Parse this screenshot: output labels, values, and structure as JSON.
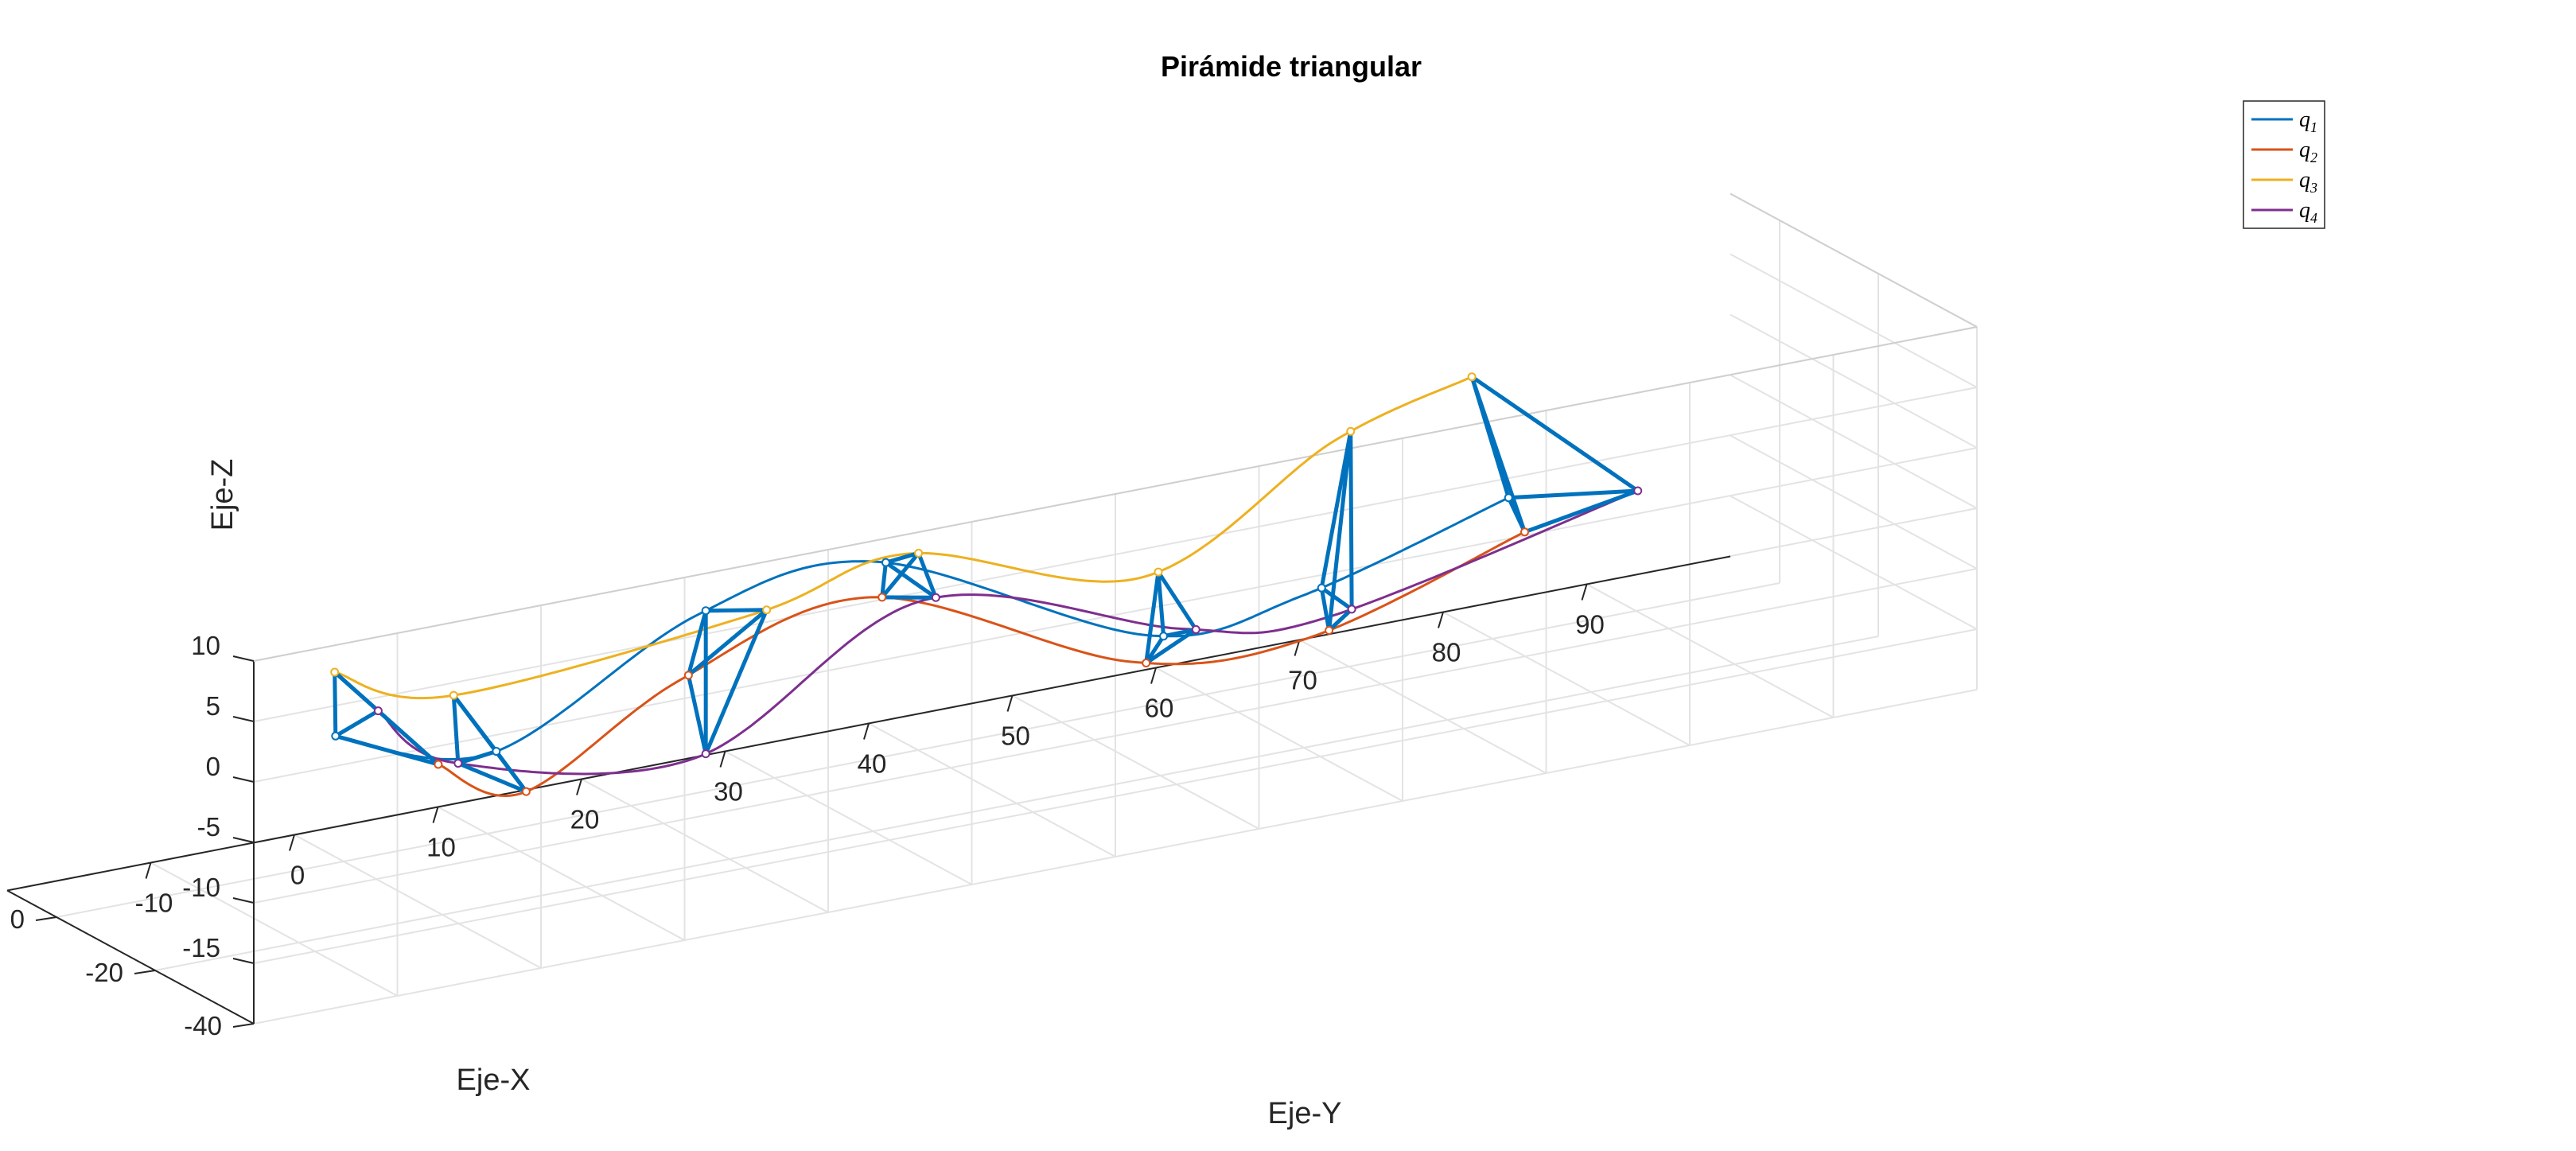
{
  "chart_data": {
    "type": "line",
    "subtype": "3d-line",
    "title": "Pirámide triangular",
    "xlabel": "Eje-X",
    "ylabel": "Eje-Y",
    "zlabel": "Eje-Z",
    "xticks": [
      -40,
      -20,
      0
    ],
    "yticks": [
      -10,
      0,
      10,
      20,
      30,
      40,
      50,
      60,
      70,
      80,
      90
    ],
    "zticks": [
      -15,
      -10,
      -5,
      0,
      5,
      10
    ],
    "xlim": [
      -40,
      10
    ],
    "ylim": [
      -20,
      100
    ],
    "zlim": [
      -20,
      10
    ],
    "grid": true,
    "legend_position": "top-right",
    "legend": [
      {
        "symbol": "q",
        "sub": "1",
        "color": "#0072BD"
      },
      {
        "symbol": "q",
        "sub": "2",
        "color": "#D95319"
      },
      {
        "symbol": "q",
        "sub": "3",
        "color": "#EDB120"
      },
      {
        "symbol": "q",
        "sub": "4",
        "color": "#7E2F8E"
      }
    ],
    "pyramid_color": "#0072BD",
    "series": [
      {
        "name": "q1",
        "color": "#0072BD",
        "points": [
          [
            -10,
            -4.0,
            -6.5
          ],
          [
            2,
            11.0,
            -14.0
          ],
          [
            10,
            28.0,
            -8.3
          ],
          [
            6,
            39.0,
            -5.5
          ],
          [
            -3,
            55.0,
            -13.3
          ],
          [
            -8,
            64.0,
            -11.0
          ],
          [
            -12,
            77.0,
            -5.0
          ]
        ]
      },
      {
        "name": "q2",
        "color": "#D95319",
        "points": [
          [
            -25,
            -2.0,
            -6.0
          ],
          [
            -16,
            7.0,
            -12.4
          ],
          [
            -7,
            21.0,
            -8.3
          ],
          [
            -2,
            36.0,
            -6.0
          ],
          [
            -11,
            51.0,
            -12.8
          ],
          [
            -15,
            62.0,
            -12.5
          ],
          [
            -24,
            74.0,
            -4.5
          ]
        ]
      },
      {
        "name": "q3",
        "color": "#EDB120",
        "points": [
          [
            -4,
            -2.0,
            -3.0
          ],
          [
            5,
            9.0,
            -9.5
          ],
          [
            -2,
            28.0,
            -5.5
          ],
          [
            -1,
            39.0,
            -3.3
          ],
          [
            4,
            57.0,
            -10.5
          ],
          [
            3,
            70.0,
            -2.0
          ],
          [
            10,
            82.0,
            -1.0
          ]
        ]
      },
      {
        "name": "q4",
        "color": "#7E2F8E",
        "points": [
          [
            -7,
            0.0,
            -6.0
          ],
          [
            -2,
            7.0,
            -13.0
          ],
          [
            -7,
            22.0,
            -15.0
          ],
          [
            -4,
            39.0,
            -6.5
          ],
          [
            -4,
            57.0,
            -13.0
          ],
          [
            -7,
            66.0,
            -13.5
          ],
          [
            -12,
            86.0,
            -6.5
          ]
        ]
      }
    ],
    "pyramids": [
      {
        "t": 0.0
      },
      {
        "t": 0.17
      },
      {
        "t": 0.34
      },
      {
        "t": 0.51
      },
      {
        "t": 0.68
      },
      {
        "t": 0.85
      },
      {
        "t": 1.0
      }
    ]
  }
}
